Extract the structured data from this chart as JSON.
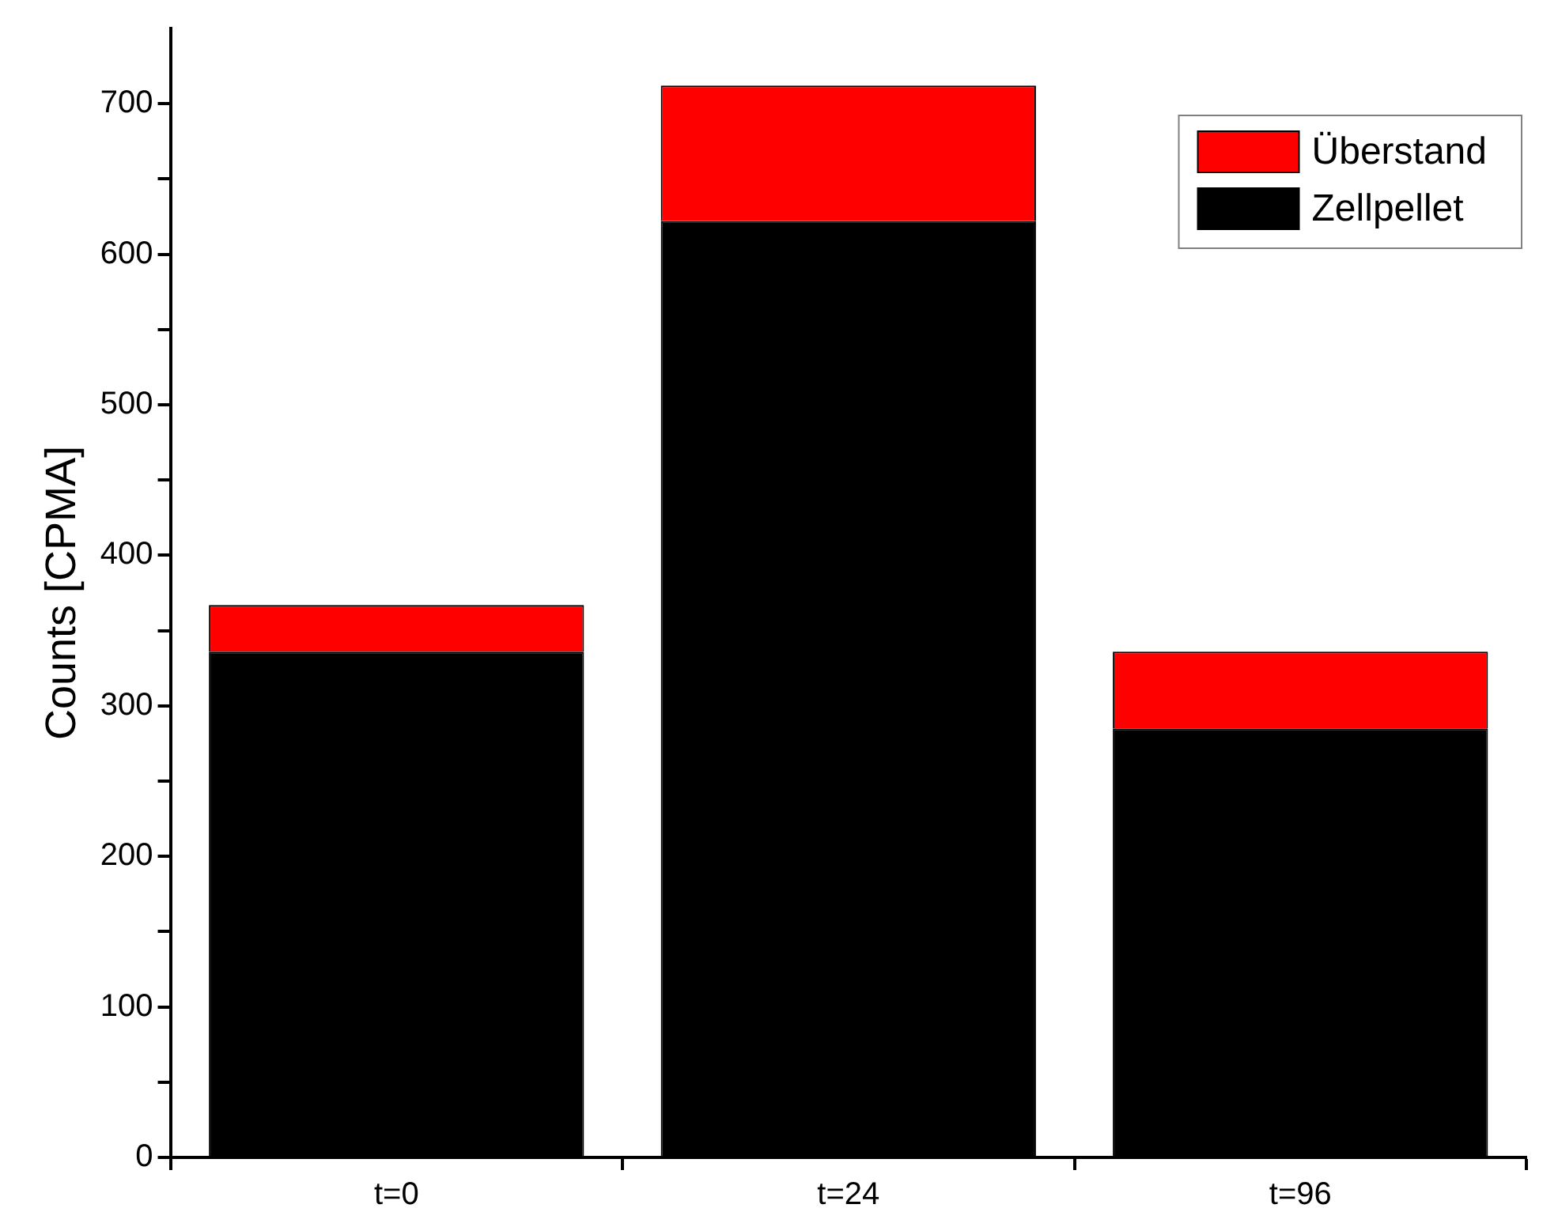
{
  "chart_data": {
    "type": "bar",
    "ylabel": "Counts [CPMA]",
    "categories": [
      "t=0",
      "t=24",
      "t=96"
    ],
    "stacked": true,
    "series": [
      {
        "name": "Zellpellet",
        "color": "#000000",
        "values": [
          336,
          622,
          285
        ]
      },
      {
        "name": "Überstand",
        "color": "#ff0000",
        "values": [
          31,
          90,
          51
        ]
      }
    ],
    "ylim": [
      0,
      750
    ],
    "yticks": [
      0,
      {
        "value": 50,
        "label": null
      },
      100,
      {
        "value": 150,
        "label": null
      },
      200,
      {
        "value": 250,
        "label": null
      },
      300,
      {
        "value": 350,
        "label": null
      },
      400,
      {
        "value": 450,
        "label": null
      },
      500,
      {
        "value": 550,
        "label": null
      },
      600,
      {
        "value": 650,
        "label": null
      },
      700
    ],
    "grid": false,
    "legend": "top right"
  }
}
